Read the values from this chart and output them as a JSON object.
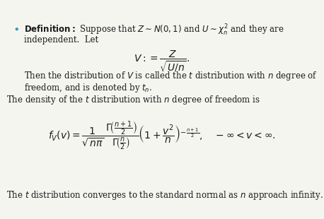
{
  "bg_color": "#f5f5f0",
  "text_color": "#1a1a1a",
  "bullet_color": "#3399cc",
  "fig_width": 4.58,
  "fig_height": 3.1,
  "dpi": 100,
  "line1_bold": "Definition:",
  "line1_rest": " Suppose that $Z \\sim N(0,1)$ and $U \\sim \\chi^2_n$ and they are",
  "line2": "independent.  Let",
  "formula_V": "$V := \\dfrac{Z}{\\sqrt{U/n}}.$",
  "line3": "Then the distribution of $V$ is called the $t$ distribution with $n$ degree of",
  "line4": "freedom, and is denoted by $t_n$.",
  "line5": "The density of the $t$ distribution with $n$ degree of freedom is",
  "formula_f": "$f_V(v) = \\dfrac{1}{\\sqrt{n\\pi}} \\dfrac{\\,\\Gamma\\!\\left(\\frac{n+1}{2}\\right)}{\\Gamma\\!\\left(\\frac{n}{2}\\right)} \\left(1 + \\dfrac{v^2}{n}\\right)^{-\\frac{n+1}{2}}, \\quad -\\infty < v < \\infty.$",
  "line6": "The $t$ distribution converges to the standard normal as $n$ approach infinity."
}
